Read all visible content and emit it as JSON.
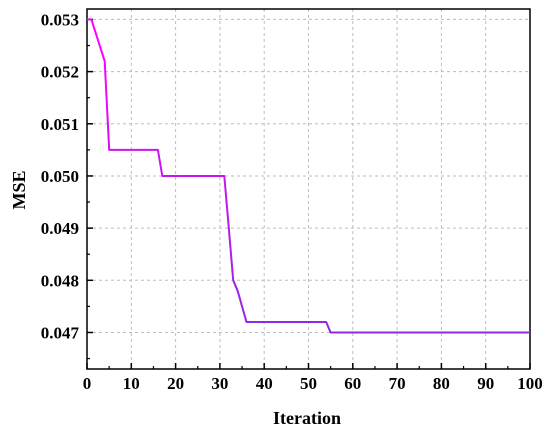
{
  "chart_data": {
    "type": "line",
    "title": "",
    "xlabel": "Iteration",
    "ylabel": "MSE",
    "xlim": [
      0,
      100
    ],
    "ylim": [
      0.0463,
      0.0532
    ],
    "x_ticks": [
      0,
      10,
      20,
      30,
      40,
      50,
      60,
      70,
      80,
      90,
      100
    ],
    "x_tick_labels": [
      "0",
      "10",
      "20",
      "30",
      "40",
      "50",
      "60",
      "70",
      "80",
      "90",
      "100"
    ],
    "y_ticks": [
      0.047,
      0.048,
      0.049,
      0.05,
      0.051,
      0.052,
      0.053
    ],
    "y_tick_labels": [
      "0.047",
      "0.048",
      "0.049",
      "0.050",
      "0.051",
      "0.052",
      "0.053"
    ],
    "grid": true,
    "legend": "none",
    "line_gradient": [
      "#ff00ff",
      "#8a2be2"
    ],
    "series": [
      {
        "name": "",
        "x": [
          0,
          1,
          4,
          5,
          16,
          17,
          31,
          32,
          33,
          34,
          36,
          54,
          55,
          100
        ],
        "y": [
          0.053,
          0.053,
          0.0522,
          0.0505,
          0.0505,
          0.05,
          0.05,
          0.049,
          0.048,
          0.0478,
          0.0472,
          0.0472,
          0.047,
          0.047
        ]
      }
    ]
  }
}
